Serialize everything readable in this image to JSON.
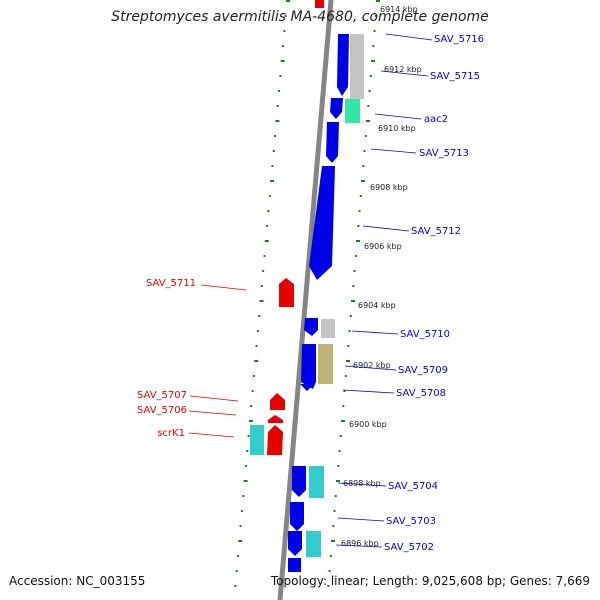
{
  "title": "Streptomyces avermitilis MA-4680, complete genome",
  "accession": "Accession: NC_003155",
  "topology": "Topology: linear; Length: 9,025,608 bp; Genes: 7,669",
  "colors": {
    "forward": "#0000e6",
    "reverse": "#e60000",
    "grey": "#c4c4c4",
    "green": "#33e6a6",
    "khaki": "#bdb47a",
    "cyan": "#33cccc",
    "tick": "#138513",
    "backbone": "#858585"
  },
  "kbp_labels": [
    "6914 kbp",
    "6912 kbp",
    "6910 kbp",
    "6908 kbp",
    "6906 kbp",
    "6904 kbp",
    "6902 kbp",
    "6900 kbp",
    "6898 kbp",
    "6896 kbp"
  ],
  "genes_right": [
    "SAV_5716",
    "SAV_5715",
    "aac2",
    "SAV_5713",
    "SAV_5712",
    "SAV_5710",
    "SAV_5709",
    "SAV_5708",
    "SAV_5704",
    "SAV_5703",
    "SAV_5702"
  ],
  "genes_left": [
    "SAV_5711",
    "SAV_5707",
    "SAV_5706",
    "scrK1"
  ]
}
